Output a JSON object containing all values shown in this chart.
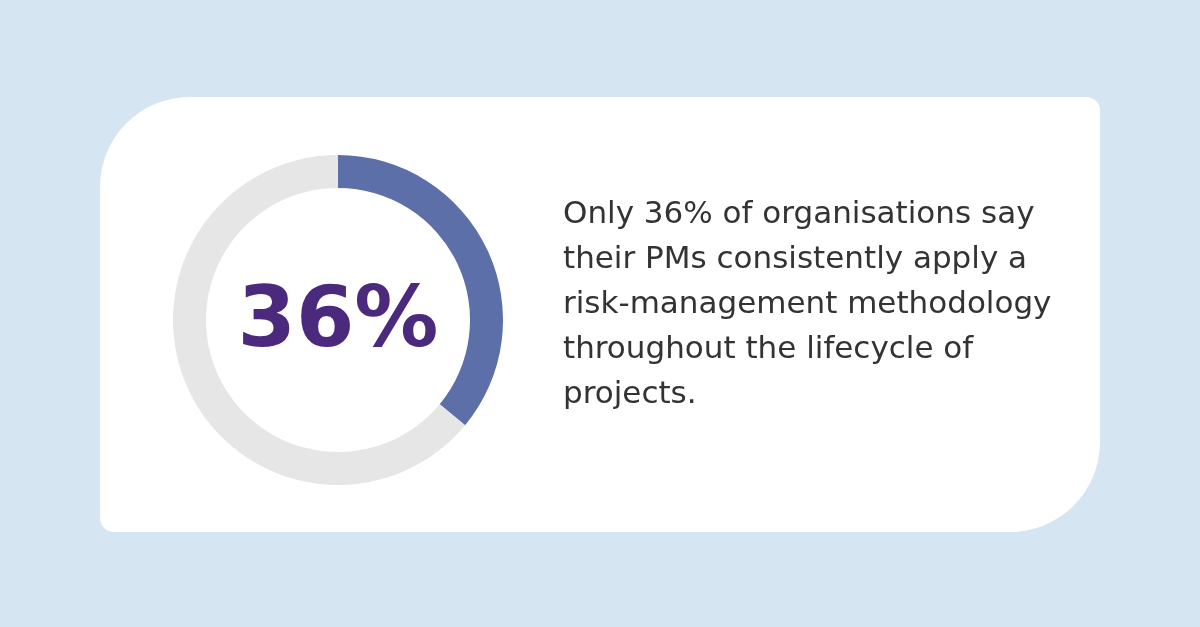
{
  "chart_data": {
    "type": "donut",
    "categories": [
      null,
      null
    ],
    "values": [
      36,
      64
    ],
    "colors": [
      "#5c6fa8",
      "#e6e6e6"
    ],
    "value_labels": [
      "36%",
      null
    ],
    "annotations": [
      "Only 36% of organisations say their PMs consistently apply a risk-management methodology throughout the lifecycle of projects."
    ],
    "legend": false
  }
}
